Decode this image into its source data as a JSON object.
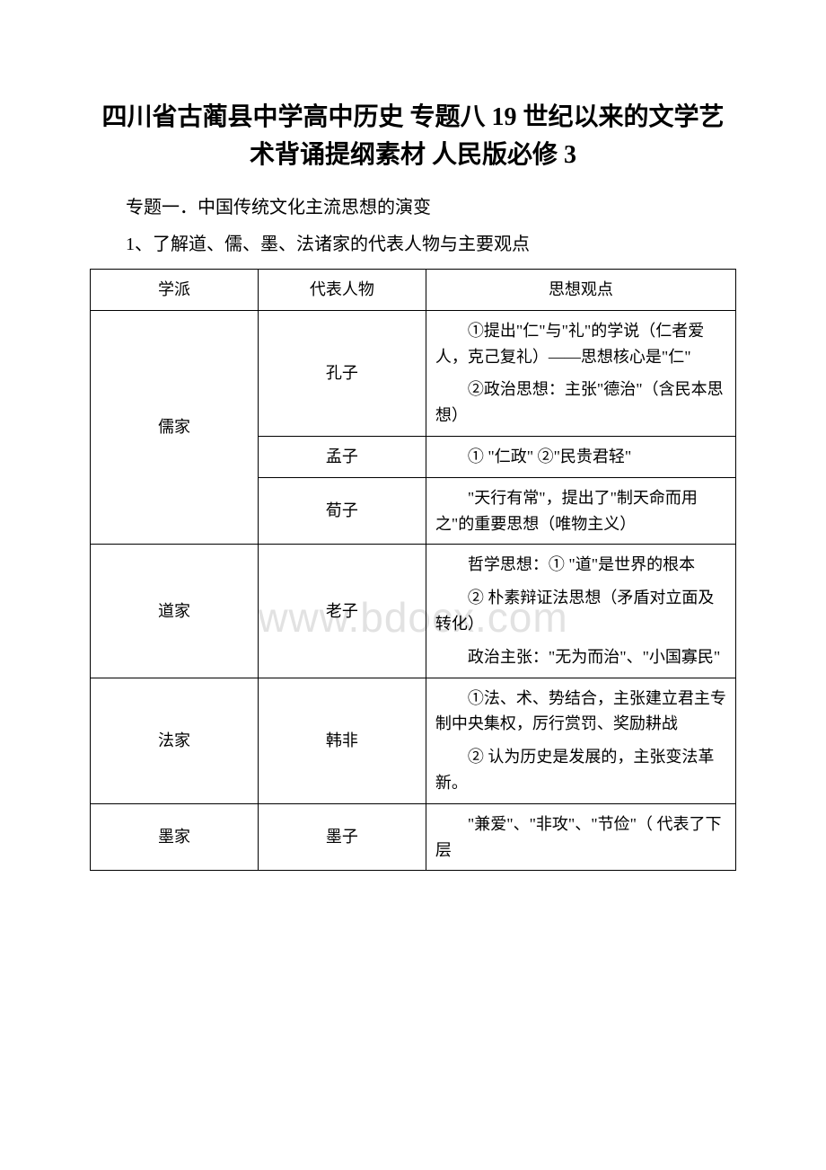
{
  "title": "四川省古蔺县中学高中历史 专题八 19 世纪以来的文学艺术背诵提纲素材 人民版必修 3",
  "subtitle": "专题一．中国传统文化主流思想的演变",
  "item1": "1、了解道、儒、墨、法诸家的代表人物与主要观点",
  "watermark": "www.bdocx.com",
  "headers": {
    "col1": "学派",
    "col2": "代表人物",
    "col3": "思想观点"
  },
  "rows": [
    {
      "school": "儒家",
      "people": [
        {
          "name": "孔子",
          "thoughts": [
            "①提出\"仁\"与\"礼\"的学说（仁者爱人，克己复礼）——思想核心是\"仁\"",
            "②政治思想：主张\"德治\"（含民本思想）"
          ]
        },
        {
          "name": "孟子",
          "thoughts": [
            "① \"仁政\" ②\"民贵君轻\""
          ]
        },
        {
          "name": "荀子",
          "thoughts": [
            "\"天行有常\"，提出了\"制天命而用之\"的重要思想（唯物主义）"
          ]
        }
      ]
    },
    {
      "school": "道家",
      "people": [
        {
          "name": "老子",
          "thoughts": [
            "哲学思想：① \"道\"是世界的根本",
            "② 朴素辩证法思想（矛盾对立面及转化）",
            "政治主张：\"无为而治\"、\"小国寡民\""
          ]
        }
      ]
    },
    {
      "school": "法家",
      "people": [
        {
          "name": "韩非",
          "thoughts": [
            "①法、术、势结合，主张建立君主专制中央集权，厉行赏罚、奖励耕战",
            "② 认为历史是发展的，主张变法革新。"
          ]
        }
      ]
    },
    {
      "school": "墨家",
      "people": [
        {
          "name": "墨子",
          "thoughts": [
            "\"兼爱\"、\"非攻\"、\"节俭\"（ 代表了下层"
          ]
        }
      ]
    }
  ]
}
